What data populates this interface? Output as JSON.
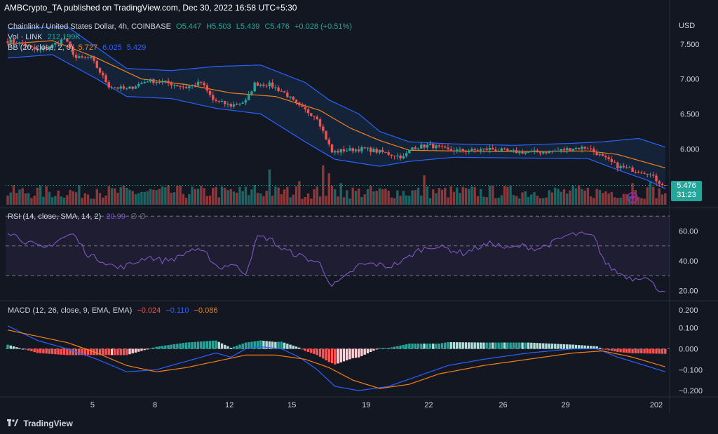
{
  "header": {
    "publisher": "AMBCrypto_TA published on TradingView.com, Dec 30, 2022 16:58 UTC+5:30"
  },
  "symbol_legend": {
    "name": "Chainlink / United States Dollar, 4h, COINBASE",
    "o": "O5.447",
    "h": "H5.503",
    "l": "L5.439",
    "c": "C5.476",
    "change": "+0.028 (+0.51%)"
  },
  "vol_legend": {
    "label": "Vol · LINK",
    "value": "212.199K"
  },
  "bb_legend": {
    "label": "BB (20, close, 2, 0)",
    "basis": "5.727",
    "upper": "6.025",
    "lower": "5.429"
  },
  "rsi_legend": {
    "label": "RSI (14, close, SMA, 14, 2)",
    "value": "20.99",
    "extra": "∅ ∅"
  },
  "macd_legend": {
    "label": "MACD (12, 26, close, 9, EMA, EMA)",
    "hist": "−0.024",
    "macd": "−0.110",
    "signal": "−0.086"
  },
  "price_box": {
    "price": "5.476",
    "countdown": "31:23"
  },
  "footer": {
    "brand": "TradingView",
    "logo_icon": "tradingview-logo-icon"
  },
  "colors": {
    "up": "#26a69a",
    "down": "#ef5350",
    "bb_band": "#2962ff",
    "bb_basis": "#f57f17",
    "rsi": "#7e57c2",
    "macd": "#2962ff",
    "signal": "#f57f17"
  },
  "chart_data": [
    {
      "type": "candlestick",
      "pane": "price",
      "axis_label": "USD",
      "x_ticks": [
        "5",
        "8",
        "12",
        "15",
        "19",
        "22",
        "26",
        "29",
        "202"
      ],
      "y_ticks": [
        "7.500",
        "7.000",
        "6.500",
        "6.000"
      ],
      "ylim": [
        5.2,
        7.85
      ],
      "close_anchors": [
        [
          0,
          7.55
        ],
        [
          5,
          7.5
        ],
        [
          10,
          7.4
        ],
        [
          15,
          7.48
        ],
        [
          19,
          7.58
        ],
        [
          23,
          7.3
        ],
        [
          28,
          7.3
        ],
        [
          34,
          6.9
        ],
        [
          40,
          6.85
        ],
        [
          47,
          6.98
        ],
        [
          53,
          6.95
        ],
        [
          60,
          6.88
        ],
        [
          65,
          6.95
        ],
        [
          69,
          6.7
        ],
        [
          75,
          6.62
        ],
        [
          80,
          6.68
        ],
        [
          83,
          6.93
        ],
        [
          88,
          6.92
        ],
        [
          93,
          6.8
        ],
        [
          98,
          6.6
        ],
        [
          104,
          6.45
        ],
        [
          107,
          6.15
        ],
        [
          109,
          5.95
        ],
        [
          113,
          5.98
        ],
        [
          120,
          6.0
        ],
        [
          127,
          5.94
        ],
        [
          133,
          5.88
        ],
        [
          136,
          6.02
        ],
        [
          142,
          6.05
        ],
        [
          148,
          5.98
        ],
        [
          155,
          5.97
        ],
        [
          162,
          6.0
        ],
        [
          169,
          5.96
        ],
        [
          176,
          5.95
        ],
        [
          183,
          5.96
        ],
        [
          190,
          6.01
        ],
        [
          195,
          6.02
        ],
        [
          200,
          5.88
        ],
        [
          205,
          5.75
        ],
        [
          210,
          5.7
        ],
        [
          215,
          5.66
        ],
        [
          219,
          5.52
        ],
        [
          221,
          5.476
        ]
      ],
      "bb_upper_anchors": [
        [
          0,
          7.72
        ],
        [
          20,
          7.75
        ],
        [
          30,
          7.45
        ],
        [
          40,
          7.15
        ],
        [
          55,
          7.12
        ],
        [
          70,
          7.18
        ],
        [
          85,
          7.2
        ],
        [
          100,
          6.95
        ],
        [
          108,
          6.7
        ],
        [
          118,
          6.5
        ],
        [
          125,
          6.25
        ],
        [
          135,
          6.1
        ],
        [
          150,
          6.07
        ],
        [
          170,
          6.05
        ],
        [
          190,
          6.08
        ],
        [
          200,
          6.1
        ],
        [
          212,
          6.15
        ],
        [
          221,
          6.025
        ]
      ],
      "bb_basis_anchors": [
        [
          0,
          7.5
        ],
        [
          15,
          7.55
        ],
        [
          30,
          7.3
        ],
        [
          45,
          7.0
        ],
        [
          60,
          6.92
        ],
        [
          75,
          6.8
        ],
        [
          90,
          6.75
        ],
        [
          105,
          6.55
        ],
        [
          115,
          6.3
        ],
        [
          125,
          6.12
        ],
        [
          135,
          5.98
        ],
        [
          150,
          5.97
        ],
        [
          170,
          5.96
        ],
        [
          195,
          5.97
        ],
        [
          205,
          5.92
        ],
        [
          221,
          5.727
        ]
      ],
      "bb_lower_anchors": [
        [
          0,
          7.3
        ],
        [
          15,
          7.35
        ],
        [
          30,
          7.0
        ],
        [
          40,
          6.75
        ],
        [
          55,
          6.72
        ],
        [
          70,
          6.58
        ],
        [
          85,
          6.5
        ],
        [
          100,
          6.1
        ],
        [
          110,
          5.85
        ],
        [
          125,
          5.75
        ],
        [
          135,
          5.82
        ],
        [
          150,
          5.88
        ],
        [
          170,
          5.87
        ],
        [
          195,
          5.86
        ],
        [
          205,
          5.7
        ],
        [
          215,
          5.55
        ],
        [
          221,
          5.429
        ]
      ]
    },
    {
      "type": "bar",
      "pane": "volume",
      "series": [
        {
          "name": "Vol · LINK"
        }
      ],
      "spike_anchors": [
        [
          106,
          1.0
        ],
        [
          88,
          0.9
        ],
        [
          140,
          0.75
        ],
        [
          108,
          0.8
        ],
        [
          98,
          0.6
        ],
        [
          112,
          0.55
        ],
        [
          83,
          0.5
        ],
        [
          210,
          0.55
        ],
        [
          216,
          0.6
        ],
        [
          30,
          0.4
        ],
        [
          70,
          0.45
        ]
      ]
    },
    {
      "type": "line",
      "pane": "rsi",
      "series": [
        {
          "name": "RSI (14, close, SMA, 14, 2)"
        }
      ],
      "y_ticks": [
        "60.00",
        "40.00",
        "20.00"
      ],
      "ylim": [
        15,
        72
      ],
      "levels": [
        70,
        50,
        30
      ],
      "anchors": [
        [
          0,
          60
        ],
        [
          6,
          53
        ],
        [
          12,
          48
        ],
        [
          18,
          55
        ],
        [
          22,
          58
        ],
        [
          27,
          44
        ],
        [
          32,
          40
        ],
        [
          37,
          35
        ],
        [
          42,
          38
        ],
        [
          47,
          43
        ],
        [
          52,
          40
        ],
        [
          57,
          42
        ],
        [
          62,
          48
        ],
        [
          67,
          44
        ],
        [
          71,
          35
        ],
        [
          75,
          38
        ],
        [
          80,
          32
        ],
        [
          84,
          56
        ],
        [
          88,
          55
        ],
        [
          92,
          48
        ],
        [
          96,
          45
        ],
        [
          100,
          42
        ],
        [
          105,
          38
        ],
        [
          109,
          23
        ],
        [
          113,
          28
        ],
        [
          118,
          37
        ],
        [
          123,
          38
        ],
        [
          128,
          36
        ],
        [
          133,
          40
        ],
        [
          138,
          47
        ],
        [
          143,
          50
        ],
        [
          148,
          48
        ],
        [
          153,
          45
        ],
        [
          158,
          49
        ],
        [
          163,
          52
        ],
        [
          168,
          48
        ],
        [
          173,
          50
        ],
        [
          178,
          48
        ],
        [
          183,
          52
        ],
        [
          188,
          57
        ],
        [
          192,
          58
        ],
        [
          197,
          56
        ],
        [
          201,
          38
        ],
        [
          205,
          32
        ],
        [
          210,
          28
        ],
        [
          214,
          30
        ],
        [
          218,
          22
        ],
        [
          220,
          20
        ],
        [
          221,
          20.99
        ]
      ]
    },
    {
      "type": "line",
      "pane": "macd",
      "series": [
        {
          "name": "MACD"
        },
        {
          "name": "Signal"
        },
        {
          "name": "Histogram"
        }
      ],
      "y_ticks": [
        "0.100",
        "0.000",
        "−0.100",
        "−0.200"
      ],
      "extra_tick": "0.200",
      "ylim": [
        -0.22,
        0.22
      ],
      "macd_anchors": [
        [
          0,
          0.11
        ],
        [
          10,
          0.04
        ],
        [
          20,
          0.0
        ],
        [
          30,
          -0.05
        ],
        [
          40,
          -0.11
        ],
        [
          50,
          -0.1
        ],
        [
          60,
          -0.06
        ],
        [
          70,
          -0.02
        ],
        [
          75,
          -0.04
        ],
        [
          80,
          0.0
        ],
        [
          85,
          0.01
        ],
        [
          92,
          0.0
        ],
        [
          98,
          -0.04
        ],
        [
          104,
          -0.1
        ],
        [
          110,
          -0.18
        ],
        [
          118,
          -0.2
        ],
        [
          128,
          -0.18
        ],
        [
          138,
          -0.13
        ],
        [
          148,
          -0.08
        ],
        [
          160,
          -0.05
        ],
        [
          175,
          -0.02
        ],
        [
          190,
          0.0
        ],
        [
          198,
          0.0
        ],
        [
          205,
          -0.04
        ],
        [
          212,
          -0.07
        ],
        [
          221,
          -0.11
        ]
      ],
      "signal_anchors": [
        [
          0,
          0.09
        ],
        [
          10,
          0.06
        ],
        [
          20,
          0.03
        ],
        [
          30,
          -0.02
        ],
        [
          40,
          -0.08
        ],
        [
          50,
          -0.11
        ],
        [
          60,
          -0.09
        ],
        [
          70,
          -0.06
        ],
        [
          80,
          -0.03
        ],
        [
          90,
          -0.03
        ],
        [
          100,
          -0.05
        ],
        [
          108,
          -0.09
        ],
        [
          116,
          -0.15
        ],
        [
          125,
          -0.19
        ],
        [
          135,
          -0.17
        ],
        [
          145,
          -0.12
        ],
        [
          160,
          -0.08
        ],
        [
          175,
          -0.05
        ],
        [
          190,
          -0.02
        ],
        [
          200,
          -0.01
        ],
        [
          210,
          -0.04
        ],
        [
          221,
          -0.086
        ]
      ]
    }
  ]
}
